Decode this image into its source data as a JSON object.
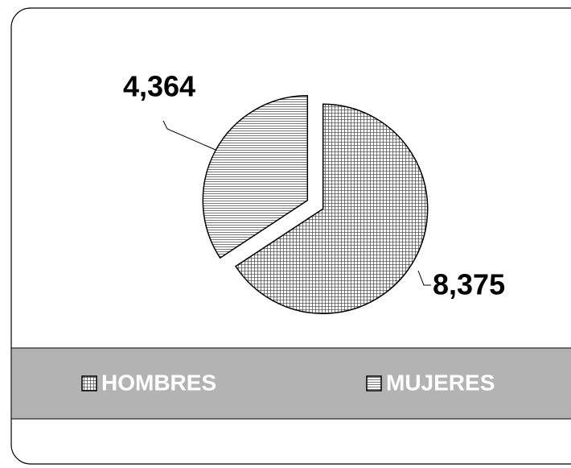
{
  "chart_data": {
    "type": "pie",
    "categories": [
      "HOMBRES",
      "MUJERES"
    ],
    "values": [
      8375,
      4364
    ],
    "value_labels": [
      "8,375",
      "4,364"
    ]
  }
}
